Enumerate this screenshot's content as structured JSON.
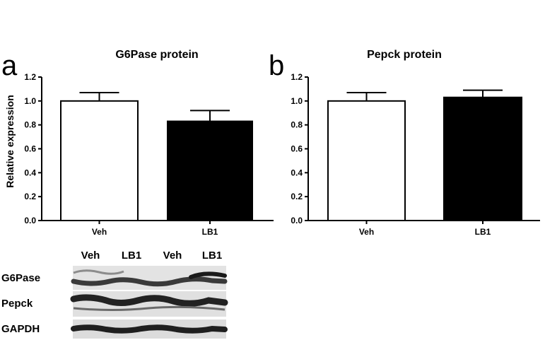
{
  "panels": [
    {
      "letter": "a"
    },
    {
      "letter": "b"
    }
  ],
  "chart_data": [
    {
      "type": "bar",
      "title": "G6Pase protein",
      "ylabel": "Relative expression",
      "xlabel": "",
      "categories": [
        "Veh",
        "LB1"
      ],
      "values": [
        1.0,
        0.83
      ],
      "errors": [
        0.07,
        0.09
      ],
      "bar_colors": [
        "#ffffff",
        "#000000"
      ],
      "ylim": [
        0,
        1.2
      ],
      "yticks": [
        0.0,
        0.2,
        0.4,
        0.6,
        0.8,
        1.0,
        1.2
      ],
      "ytick_labels": [
        "0.0",
        "0.2",
        "0.4",
        "0.6",
        "0.8",
        "1.0",
        "1.2"
      ],
      "grid": false
    },
    {
      "type": "bar",
      "title": "Pepck protein",
      "ylabel": "",
      "xlabel": "",
      "categories": [
        "Veh",
        "LB1"
      ],
      "values": [
        1.0,
        1.03
      ],
      "errors": [
        0.07,
        0.06
      ],
      "bar_colors": [
        "#ffffff",
        "#000000"
      ],
      "ylim": [
        0,
        1.2
      ],
      "yticks": [
        0.0,
        0.2,
        0.4,
        0.6,
        0.8,
        1.0,
        1.2
      ],
      "ytick_labels": [
        "0.0",
        "0.2",
        "0.4",
        "0.6",
        "0.8",
        "1.0",
        "1.2"
      ],
      "grid": false
    }
  ],
  "blot": {
    "lane_labels": [
      "Veh",
      "LB1",
      "Veh",
      "LB1"
    ],
    "rows": [
      {
        "label": "G6Pase"
      },
      {
        "label": "Pepck"
      },
      {
        "label": "GAPDH"
      }
    ]
  }
}
